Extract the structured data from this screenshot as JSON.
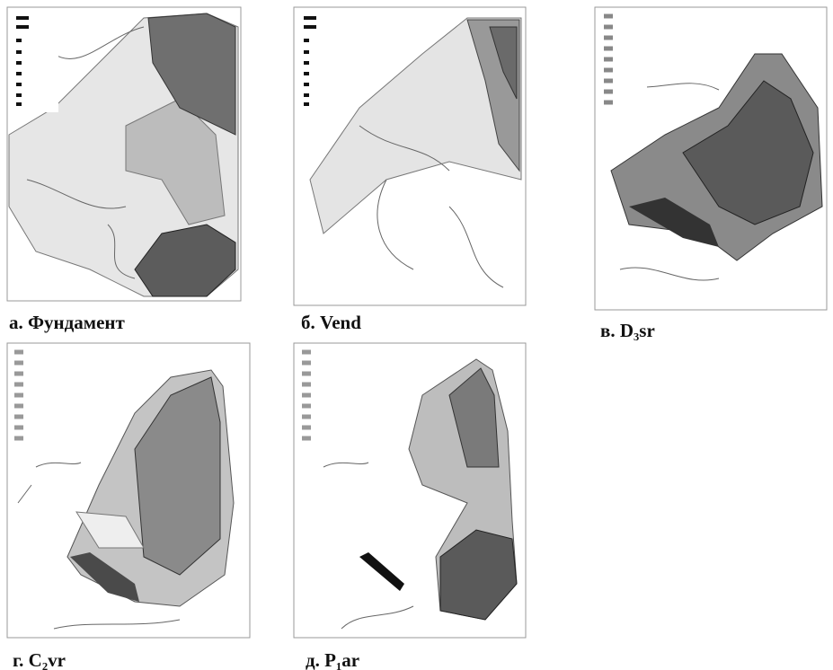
{
  "panels": [
    {
      "caption": "а. Фундамент"
    },
    {
      "caption": "б. Vend"
    },
    {
      "caption": "в. D₃sr"
    },
    {
      "caption": "г. C₂vr"
    },
    {
      "caption": "д. P₁ar"
    }
  ]
}
